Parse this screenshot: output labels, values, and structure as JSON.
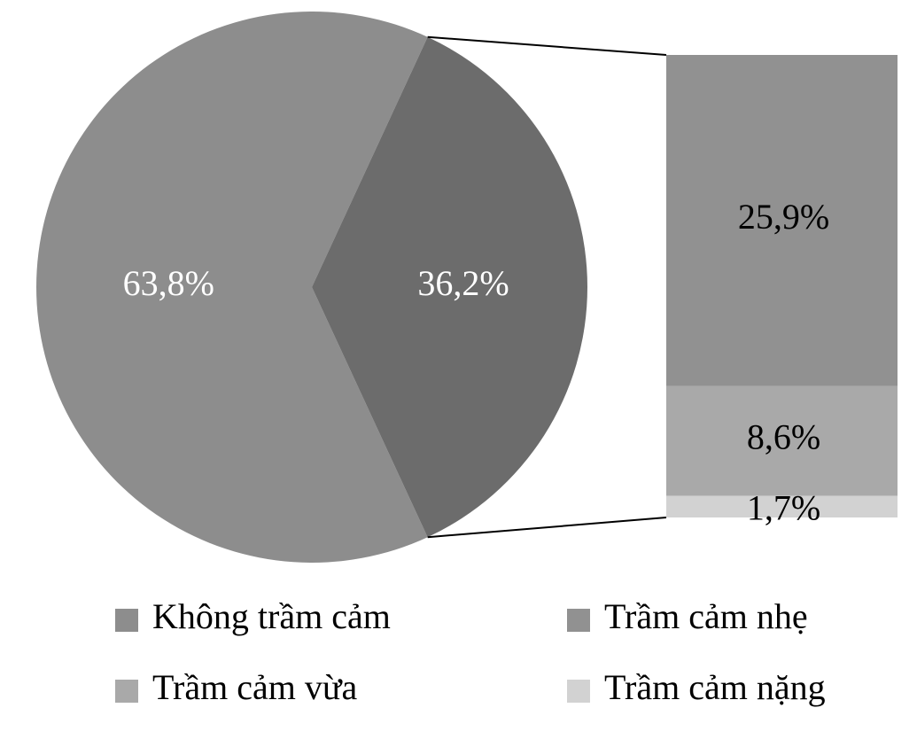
{
  "chart_data": {
    "type": "bar-of-pie",
    "pie": {
      "categories": [
        "Không trầm cảm",
        null
      ],
      "values": [
        63.8,
        36.2
      ],
      "value_labels": [
        "63,8%",
        "36,2%"
      ],
      "colors": [
        "#8d8d8d",
        "#6c6c6c"
      ],
      "label_color": "#ffffff"
    },
    "bar": {
      "categories": [
        "Trầm cảm nhẹ",
        "Trầm cảm vừa",
        "Trầm cảm nặng"
      ],
      "values": [
        25.9,
        8.6,
        1.7
      ],
      "value_labels": [
        "25,9%",
        "8,6%",
        "1,7%"
      ],
      "colors": [
        "#919191",
        "#a9a9a9",
        "#d2d2d2"
      ],
      "label_color": "#000000"
    }
  }
}
